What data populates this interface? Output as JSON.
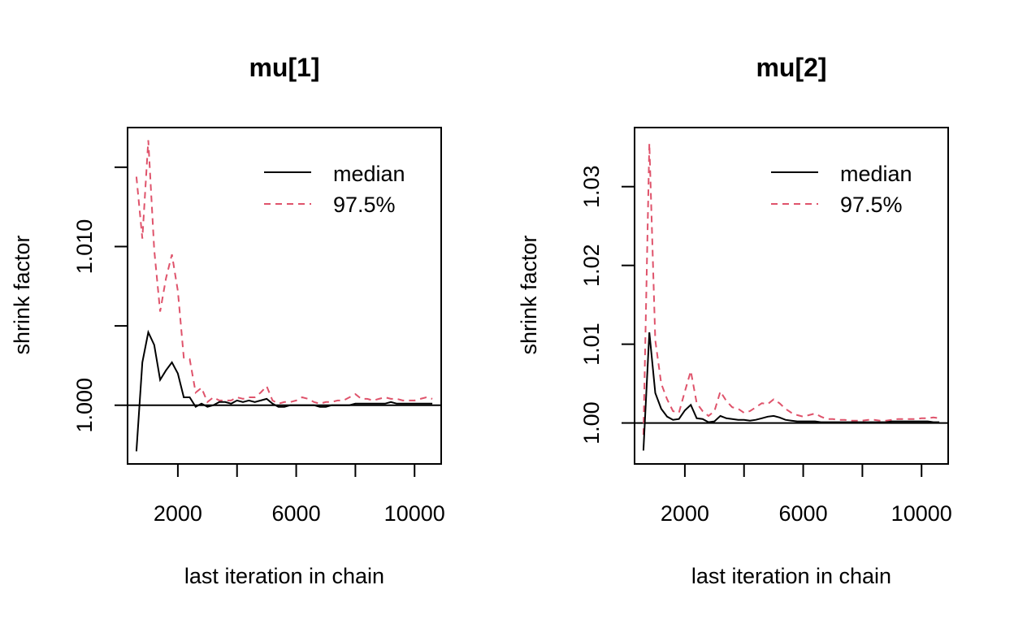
{
  "chart_data": [
    {
      "type": "line",
      "title": "mu[1]",
      "xlabel": "last iteration in chain",
      "ylabel": "shrink factor",
      "xlim": [
        300,
        10900
      ],
      "ylim": [
        0.9963,
        1.0175
      ],
      "xticks": [
        2000,
        4000,
        6000,
        8000,
        10000
      ],
      "xtick_labels": [
        "2000",
        "",
        "6000",
        "",
        "10000"
      ],
      "yticks": [
        1.0,
        1.005,
        1.01,
        1.015
      ],
      "ytick_labels": [
        "1.000",
        "",
        "1.010",
        ""
      ],
      "reference_line": 1.0,
      "legend": {
        "position": "top-right",
        "entries": [
          "median",
          "97.5%"
        ]
      },
      "series": [
        {
          "name": "median",
          "color": "#000000",
          "dash": "solid",
          "x": [
            600,
            800,
            1000,
            1200,
            1400,
            1600,
            1800,
            2000,
            2200,
            2400,
            2600,
            2800,
            3000,
            3200,
            3400,
            3600,
            3800,
            4000,
            4200,
            4400,
            4600,
            4800,
            5000,
            5200,
            5400,
            5600,
            5800,
            6000,
            6200,
            6400,
            6600,
            6800,
            7000,
            7200,
            7400,
            7600,
            7800,
            8000,
            8200,
            8400,
            8600,
            8800,
            9000,
            9200,
            9400,
            9600,
            9800,
            10000,
            10200,
            10400,
            10600
          ],
          "values": [
            0.9971,
            1.0027,
            1.0046,
            1.0038,
            1.0016,
            1.0022,
            1.0027,
            1.002,
            1.0005,
            1.0005,
            0.9999,
            1.0001,
            0.9999,
            1.0,
            1.0002,
            1.0002,
            1.0001,
            1.0003,
            1.0002,
            1.0003,
            1.0002,
            1.0003,
            1.0004,
            1.0001,
            0.9999,
            0.9999,
            1.0,
            1.0,
            1.0,
            1.0,
            1.0,
            0.9999,
            0.9999,
            1.0,
            1.0,
            1.0,
            1.0,
            1.0001,
            1.0001,
            1.0001,
            1.0001,
            1.0001,
            1.0001,
            1.0002,
            1.0001,
            1.0001,
            1.0001,
            1.0001,
            1.0001,
            1.0001,
            1.0001
          ]
        },
        {
          "name": "97.5%",
          "color": "#DF536B",
          "dash": "dashed",
          "x": [
            600,
            800,
            1000,
            1200,
            1400,
            1600,
            1800,
            2000,
            2200,
            2400,
            2600,
            2800,
            3000,
            3200,
            3400,
            3600,
            3800,
            4000,
            4200,
            4400,
            4600,
            4800,
            5000,
            5200,
            5400,
            5600,
            5800,
            6000,
            6200,
            6400,
            6600,
            6800,
            7000,
            7200,
            7400,
            7600,
            7800,
            8000,
            8200,
            8400,
            8600,
            8800,
            9000,
            9200,
            9400,
            9600,
            9800,
            10000,
            10200,
            10400,
            10600
          ],
          "values": [
            1.0144,
            1.0105,
            1.0167,
            1.0098,
            1.0059,
            1.008,
            1.0095,
            1.0072,
            1.003,
            1.0029,
            1.0008,
            1.0011,
            1.0002,
            1.0005,
            1.0003,
            1.0003,
            1.0003,
            1.0005,
            1.0004,
            1.0005,
            1.0005,
            1.0008,
            1.0012,
            1.0003,
            1.0001,
            1.0002,
            1.0002,
            1.0003,
            1.0005,
            1.0004,
            1.0002,
            1.0001,
            1.0002,
            1.0002,
            1.0003,
            1.0003,
            1.0005,
            1.0007,
            1.0004,
            1.0004,
            1.0003,
            1.0004,
            1.0005,
            1.0004,
            1.0004,
            1.0003,
            1.0003,
            1.0003,
            1.0004,
            1.0005,
            1.0004
          ]
        }
      ]
    },
    {
      "type": "line",
      "title": "mu[2]",
      "xlabel": "last iteration in chain",
      "ylabel": "shrink factor",
      "xlim": [
        300,
        10900
      ],
      "ylim": [
        0.9948,
        1.0375
      ],
      "xticks": [
        2000,
        4000,
        6000,
        8000,
        10000
      ],
      "xtick_labels": [
        "2000",
        "",
        "6000",
        "",
        "10000"
      ],
      "yticks": [
        1.0,
        1.01,
        1.02,
        1.03
      ],
      "ytick_labels": [
        "1.00",
        "1.01",
        "1.02",
        "1.03"
      ],
      "reference_line": 1.0,
      "legend": {
        "position": "top-right",
        "entries": [
          "median",
          "97.5%"
        ]
      },
      "series": [
        {
          "name": "median",
          "color": "#000000",
          "dash": "solid",
          "x": [
            600,
            800,
            1000,
            1200,
            1400,
            1600,
            1800,
            2000,
            2200,
            2400,
            2600,
            2800,
            3000,
            3200,
            3400,
            3600,
            3800,
            4000,
            4200,
            4400,
            4600,
            4800,
            5000,
            5200,
            5400,
            5600,
            5800,
            6000,
            6200,
            6400,
            6600,
            6800,
            7000,
            7200,
            7400,
            7600,
            7800,
            8000,
            8200,
            8400,
            8600,
            8800,
            9000,
            9200,
            9400,
            9600,
            9800,
            10000,
            10200,
            10400,
            10600
          ],
          "values": [
            0.9965,
            1.0115,
            1.0038,
            1.0018,
            1.0008,
            1.0004,
            1.0005,
            1.0016,
            1.0023,
            1.0006,
            1.0005,
            1.0001,
            1.0002,
            1.0009,
            1.0006,
            1.0005,
            1.0004,
            1.0004,
            1.0003,
            1.0004,
            1.0006,
            1.0008,
            1.0009,
            1.0007,
            1.0004,
            1.0003,
            1.0002,
            1.0002,
            1.0002,
            1.0002,
            1.0001,
            1.0001,
            1.0001,
            1.0001,
            1.0001,
            1.0001,
            1.0001,
            1.0001,
            1.0001,
            1.0001,
            1.0001,
            1.0001,
            1.0002,
            1.0002,
            1.0002,
            1.0002,
            1.0002,
            1.0002,
            1.0002,
            1.0001,
            1.0001
          ]
        },
        {
          "name": "97.5%",
          "color": "#DF536B",
          "dash": "dashed",
          "x": [
            600,
            800,
            1000,
            1200,
            1400,
            1600,
            1800,
            2000,
            2200,
            2400,
            2600,
            2800,
            3000,
            3200,
            3400,
            3600,
            3800,
            4000,
            4200,
            4400,
            4600,
            4800,
            5000,
            5200,
            5400,
            5600,
            5800,
            6000,
            6200,
            6400,
            6600,
            6800,
            7000,
            7200,
            7400,
            7600,
            7800,
            8000,
            8200,
            8400,
            8600,
            8800,
            9000,
            9200,
            9400,
            9600,
            9800,
            10000,
            10200,
            10400,
            10600
          ],
          "values": [
            0.9985,
            1.0355,
            1.0105,
            1.005,
            1.003,
            1.0015,
            1.0013,
            1.004,
            1.0066,
            1.0025,
            1.0015,
            1.0009,
            1.0015,
            1.004,
            1.0028,
            1.002,
            1.0018,
            1.0013,
            1.0015,
            1.002,
            1.0025,
            1.0024,
            1.003,
            1.0025,
            1.0018,
            1.0013,
            1.001,
            1.0008,
            1.001,
            1.0012,
            1.0008,
            1.0005,
            1.0005,
            1.0004,
            1.0004,
            1.0003,
            1.0003,
            1.0003,
            1.0004,
            1.0004,
            1.0003,
            1.0003,
            1.0004,
            1.0005,
            1.0005,
            1.0005,
            1.0005,
            1.0006,
            1.0006,
            1.0007,
            1.0006
          ]
        }
      ]
    }
  ]
}
